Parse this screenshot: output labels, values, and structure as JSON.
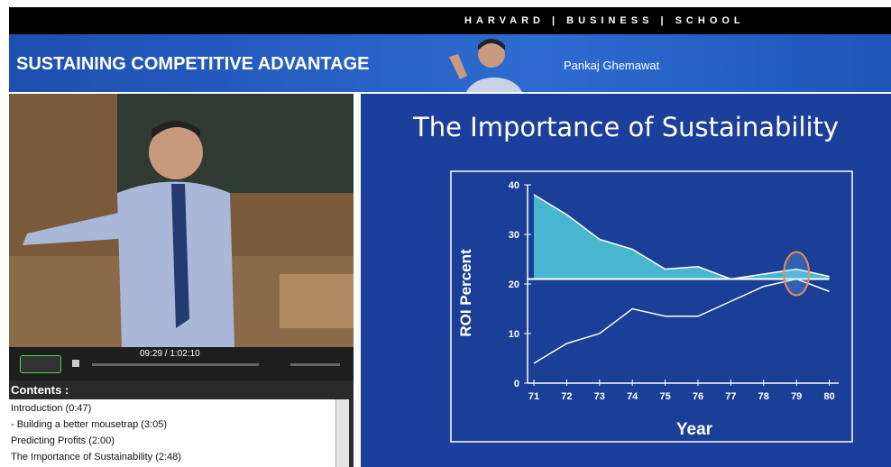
{
  "header": {
    "institution": "HARVARD | BUSINESS | SCHOOL",
    "course_title": "SUSTAINING COMPETITIVE ADVANTAGE",
    "presenter": "Pankaj Ghemawat"
  },
  "player": {
    "time": "09:29 / 1:02:10"
  },
  "contents": {
    "title": "Contents :",
    "items": [
      "Introduction (0:47)",
      "- Building a better mousetrap (3:05)",
      "Predicting Profits (2:00)",
      "The Importance of Sustainability (2:48)"
    ]
  },
  "slide": {
    "title": "The Importance of Sustainability"
  },
  "chart_data": {
    "type": "line",
    "x_label": "Year",
    "y_label": "ROI Percent",
    "categories": [
      "71",
      "72",
      "73",
      "74",
      "75",
      "76",
      "77",
      "78",
      "79",
      "80"
    ],
    "series": [
      {
        "color": "#ffffff",
        "fill": "#4fc3d6",
        "values": [
          38,
          34,
          29,
          27,
          23,
          23.5,
          21,
          22,
          23,
          21.5
        ]
      },
      {
        "color": "#ffffff",
        "values": [
          4,
          8,
          10,
          15,
          13.5,
          13.5,
          16.5,
          19.5,
          21,
          18.5
        ]
      }
    ],
    "reference_line": 21,
    "ylim": [
      0,
      40
    ],
    "yticks": [
      0,
      10,
      20,
      30,
      40
    ]
  }
}
